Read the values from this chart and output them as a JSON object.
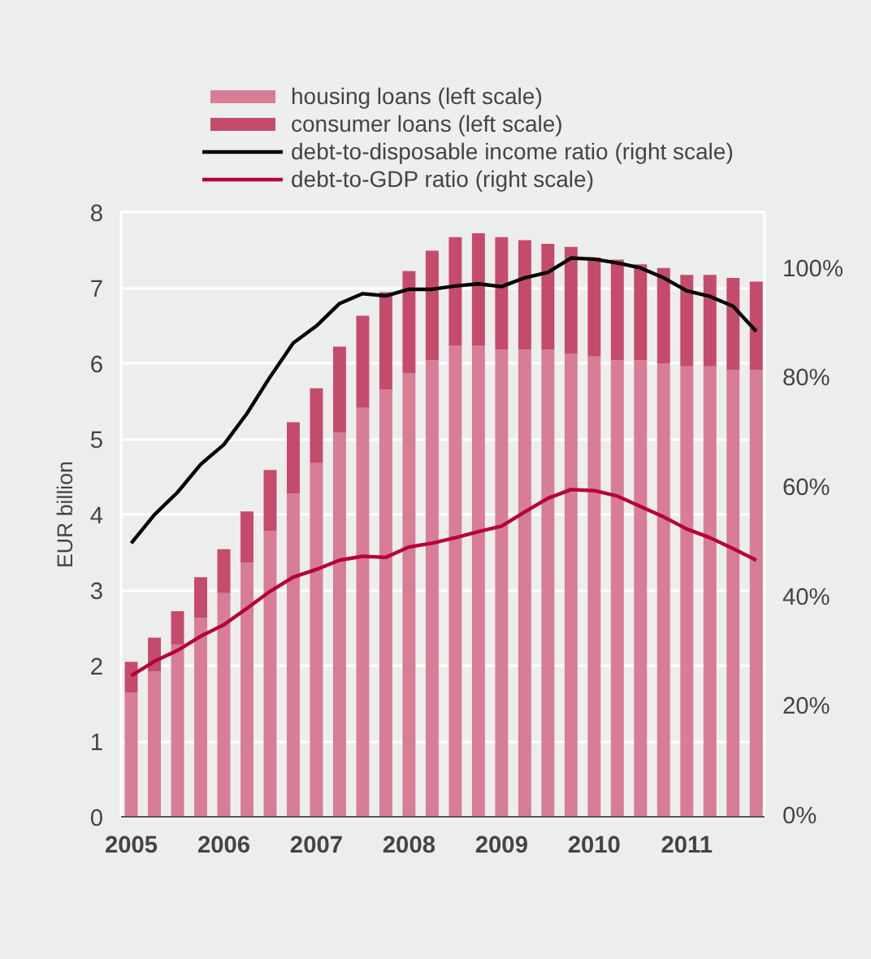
{
  "chart_data": {
    "type": "bar",
    "stacked": true,
    "ylabel": "EUR billion",
    "x": [
      2005,
      2005.25,
      2005.5,
      2005.75,
      2006,
      2006.25,
      2006.5,
      2006.75,
      2007,
      2007.25,
      2007.5,
      2007.75,
      2008,
      2008.25,
      2008.5,
      2008.75,
      2009,
      2009.25,
      2009.5,
      2009.75,
      2010,
      2010.25,
      2010.5,
      2010.75,
      2011,
      2011.25,
      2011.5,
      2011.75
    ],
    "series": [
      {
        "name": "housing loans (left scale)",
        "color": "#d77d96",
        "values": [
          1.64,
          1.92,
          2.28,
          2.63,
          2.96,
          3.36,
          3.78,
          4.28,
          4.68,
          5.08,
          5.41,
          5.65,
          5.87,
          6.04,
          6.23,
          6.23,
          6.18,
          6.18,
          6.18,
          6.13,
          6.09,
          6.04,
          6.04,
          6.0,
          5.96,
          5.96,
          5.91,
          5.91
        ]
      },
      {
        "name": "consumer loans (left scale)",
        "color": "#c54b6c",
        "values": [
          0.41,
          0.45,
          0.44,
          0.54,
          0.58,
          0.68,
          0.81,
          0.94,
          0.99,
          1.14,
          1.22,
          1.29,
          1.35,
          1.45,
          1.44,
          1.49,
          1.49,
          1.45,
          1.4,
          1.41,
          1.31,
          1.33,
          1.27,
          1.26,
          1.21,
          1.21,
          1.22,
          1.17
        ]
      },
      {
        "name": "debt-to-disposable income ratio (right scale)",
        "type": "line",
        "axis": "y2",
        "color": "#000000",
        "values": [
          50.0,
          55.2,
          59.3,
          64.4,
          68.0,
          73.7,
          80.4,
          86.6,
          89.7,
          93.8,
          95.6,
          95.2,
          96.4,
          96.4,
          97.0,
          97.4,
          96.9,
          98.5,
          99.5,
          102.1,
          101.9,
          101.2,
          100.3,
          98.5,
          96.1,
          95.1,
          93.3,
          88.7
        ]
      },
      {
        "name": "debt-to-GDP ratio (right scale)",
        "type": "line",
        "axis": "y2",
        "color": "#b5003a",
        "values": [
          25.8,
          28.4,
          30.4,
          33.0,
          35.1,
          38.1,
          41.2,
          43.8,
          45.2,
          46.9,
          47.6,
          47.4,
          49.3,
          50.0,
          51.0,
          52.1,
          53.1,
          55.7,
          58.2,
          59.8,
          59.6,
          58.6,
          56.7,
          54.8,
          52.6,
          51.0,
          49.0,
          46.9
        ]
      }
    ],
    "xlim": [
      2004.89,
      2011.84
    ],
    "xticks": [
      2005,
      2006,
      2007,
      2008,
      2009,
      2010,
      2011
    ],
    "ylim": [
      0,
      8
    ],
    "yticks": [
      0,
      1,
      2,
      3,
      4,
      5,
      6,
      7,
      8
    ],
    "y2lim": [
      0,
      110.5
    ],
    "y2ticks": [
      {
        "value": 0,
        "label": "0%"
      },
      {
        "value": 20,
        "label": "20%"
      },
      {
        "value": 40,
        "label": "40%"
      },
      {
        "value": 60,
        "label": "60%"
      },
      {
        "value": 80,
        "label": "80%"
      },
      {
        "value": 100,
        "label": "100%"
      }
    ],
    "grid": "y",
    "legend": "top"
  }
}
